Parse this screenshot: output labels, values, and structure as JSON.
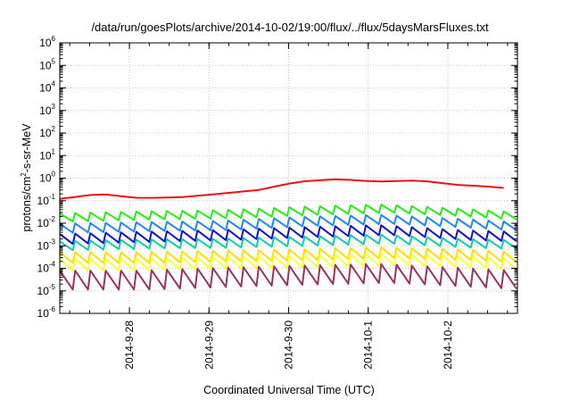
{
  "chart_data": {
    "type": "line",
    "title": "/data/run/goesPlots/archive/2014-10-02/19:00/flux/../flux/5daysMarsFluxes.txt",
    "xlabel": "Coordinated Universal Time (UTC)",
    "ylabel_parts": [
      "protons/cm",
      "2",
      "-s-sr-MeV"
    ],
    "y_scale": "log",
    "ylim": [
      1e-06,
      1000000.0
    ],
    "xlim": [
      "2014-09-27T03:00",
      "2014-10-02T21:00"
    ],
    "y_ticks": [
      {
        "base": "10",
        "exp": "-6"
      },
      {
        "base": "10",
        "exp": "-5"
      },
      {
        "base": "10",
        "exp": "-4"
      },
      {
        "base": "10",
        "exp": "-3"
      },
      {
        "base": "10",
        "exp": "-2"
      },
      {
        "base": "10",
        "exp": "-1"
      },
      {
        "base": "10",
        "exp": "0"
      },
      {
        "base": "10",
        "exp": "1"
      },
      {
        "base": "10",
        "exp": "2"
      },
      {
        "base": "10",
        "exp": "3"
      },
      {
        "base": "10",
        "exp": "4"
      },
      {
        "base": "10",
        "exp": "5"
      },
      {
        "base": "10",
        "exp": "6"
      }
    ],
    "x_ticks": [
      "2014-9-28",
      "2014-9-29",
      "2014-9-30",
      "2014-10-1",
      "2014-10-2"
    ],
    "grid": true,
    "series": [
      {
        "color": "#ee1111",
        "x": [
          "2014-09-27T03:00",
          "2014-09-27T15:00",
          "2014-09-28T03:00",
          "2014-09-28T15:00",
          "2014-09-29T03:00",
          "2014-09-29T15:00",
          "2014-09-30T03:00",
          "2014-09-30T15:00",
          "2014-10-01T03:00",
          "2014-10-01T15:00",
          "2014-10-02T03:00",
          "2014-10-02T15:00",
          "2014-10-02T21:00"
        ],
        "values": [
          0.12,
          0.2,
          0.13,
          0.14,
          0.2,
          0.3,
          0.7,
          0.9,
          0.7,
          0.8,
          0.5,
          0.4,
          0.3
        ]
      },
      {
        "color": "#22ee11",
        "x": [
          "2014-09-27T03:00",
          "2014-09-28T03:00",
          "2014-09-29T03:00",
          "2014-09-30T03:00",
          "2014-10-01T03:00",
          "2014-10-02T03:00",
          "2014-10-02T21:00"
        ],
        "values": [
          0.018,
          0.022,
          0.025,
          0.035,
          0.045,
          0.03,
          0.02
        ]
      },
      {
        "color": "#2288ee",
        "x": [
          "2014-09-27T03:00",
          "2014-09-28T03:00",
          "2014-09-29T03:00",
          "2014-09-30T03:00",
          "2014-10-01T03:00",
          "2014-10-02T03:00",
          "2014-10-02T21:00"
        ],
        "values": [
          0.006,
          0.007,
          0.008,
          0.012,
          0.015,
          0.01,
          0.007
        ]
      },
      {
        "color": "#1111cc",
        "x": [
          "2014-09-27T03:00",
          "2014-09-28T03:00",
          "2014-09-29T03:00",
          "2014-09-30T03:00",
          "2014-10-01T03:00",
          "2014-10-02T03:00",
          "2014-10-02T21:00"
        ],
        "values": [
          0.002,
          0.0025,
          0.003,
          0.004,
          0.005,
          0.003,
          0.0025
        ]
      },
      {
        "color": "#11ccaa",
        "x": [
          "2014-09-27T03:00",
          "2014-09-28T03:00",
          "2014-09-29T03:00",
          "2014-09-30T03:00",
          "2014-10-01T03:00",
          "2014-10-02T03:00",
          "2014-10-02T21:00"
        ],
        "values": [
          0.001,
          0.0012,
          0.0013,
          0.0016,
          0.002,
          0.0013,
          0.0011
        ]
      },
      {
        "color": "#ffdd00",
        "x": [
          "2014-09-27T03:00",
          "2014-09-28T03:00",
          "2014-09-29T03:00",
          "2014-09-30T03:00",
          "2014-10-01T03:00",
          "2014-10-02T03:00",
          "2014-10-02T21:00"
        ],
        "values": [
          0.0003,
          0.0003,
          0.00035,
          0.0004,
          0.0005,
          0.0004,
          0.0003
        ]
      },
      {
        "color": "#ffff33",
        "x": [
          "2014-09-27T03:00",
          "2014-09-28T03:00",
          "2014-09-29T03:00",
          "2014-09-30T03:00",
          "2014-10-01T03:00",
          "2014-10-02T03:00",
          "2014-10-02T21:00"
        ],
        "values": [
          0.00015,
          0.00015,
          0.00018,
          0.0002,
          0.00025,
          0.0002,
          0.00015
        ]
      },
      {
        "color": "#993366",
        "x": [
          "2014-09-27T03:00",
          "2014-09-28T03:00",
          "2014-09-29T03:00",
          "2014-09-30T03:00",
          "2014-10-01T03:00",
          "2014-10-02T03:00",
          "2014-10-02T21:00"
        ],
        "values": [
          3e-05,
          3e-05,
          4e-05,
          5e-05,
          6e-05,
          4e-05,
          3e-05
        ]
      }
    ]
  }
}
